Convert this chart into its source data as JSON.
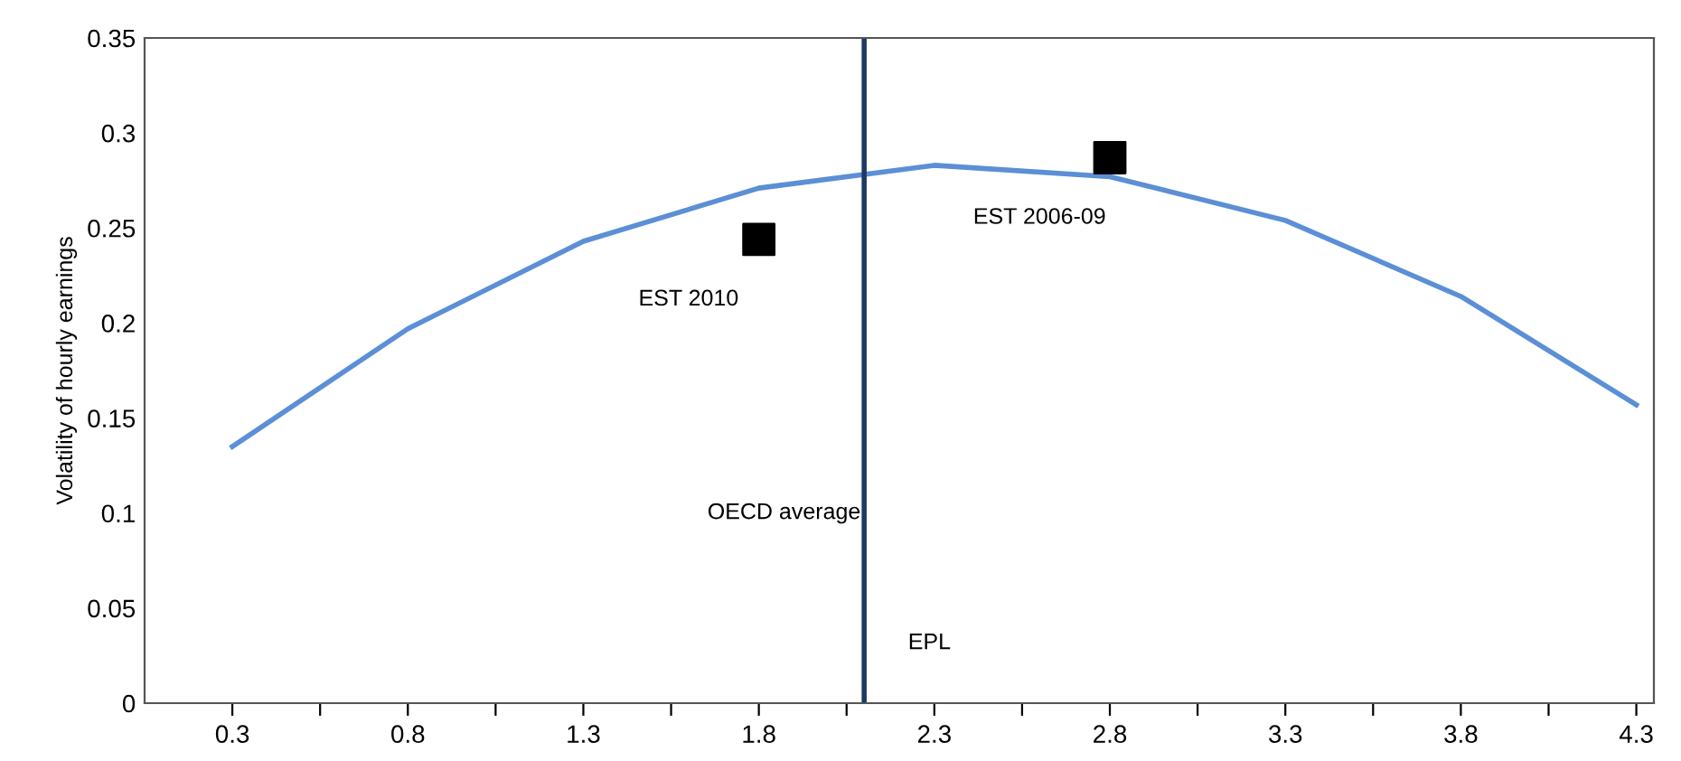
{
  "chart_data": {
    "type": "line",
    "ylabel": "Volatility of hourly earnings",
    "xlim": [
      0.05,
      4.35
    ],
    "ylim": [
      0,
      0.35
    ],
    "xticks": [
      0.3,
      {
        "value": 0.55,
        "label": null
      },
      0.8,
      {
        "value": 1.05,
        "label": null
      },
      1.3,
      {
        "value": 1.55,
        "label": null
      },
      1.8,
      {
        "value": 2.05,
        "label": null
      },
      2.3,
      {
        "value": 2.55,
        "label": null
      },
      2.8,
      {
        "value": 3.05,
        "label": null
      },
      3.3,
      {
        "value": 3.55,
        "label": null
      },
      3.8,
      {
        "value": 4.05,
        "label": null
      },
      4.3
    ],
    "yticks": [
      0,
      0.05,
      0.1,
      0.15,
      0.2,
      0.25,
      0.3,
      0.35
    ],
    "grid": false,
    "legend": false,
    "series": [
      {
        "color": "#5b8fd6",
        "x": [
          0.3,
          0.8,
          1.3,
          1.8,
          2.3,
          2.8,
          3.3,
          3.8,
          4.3
        ],
        "values": [
          0.135,
          0.197,
          0.243,
          0.271,
          0.283,
          0.277,
          0.254,
          0.214,
          0.157
        ]
      },
      {
        "type": "scatter",
        "color": "#000000",
        "marker": "square",
        "x": [
          1.8,
          2.8
        ],
        "values": [
          0.244,
          0.287
        ]
      }
    ],
    "ref_lines": [
      {
        "axis": "x",
        "value": 2.1,
        "label": "OECD average",
        "color": "#1f3864"
      }
    ],
    "annotations": [
      {
        "text": "EST 2010",
        "x": 1.8,
        "y": 0.244
      },
      {
        "text": "EST 2006-09",
        "x": 2.8,
        "y": 0.287
      },
      "EPL"
    ]
  }
}
